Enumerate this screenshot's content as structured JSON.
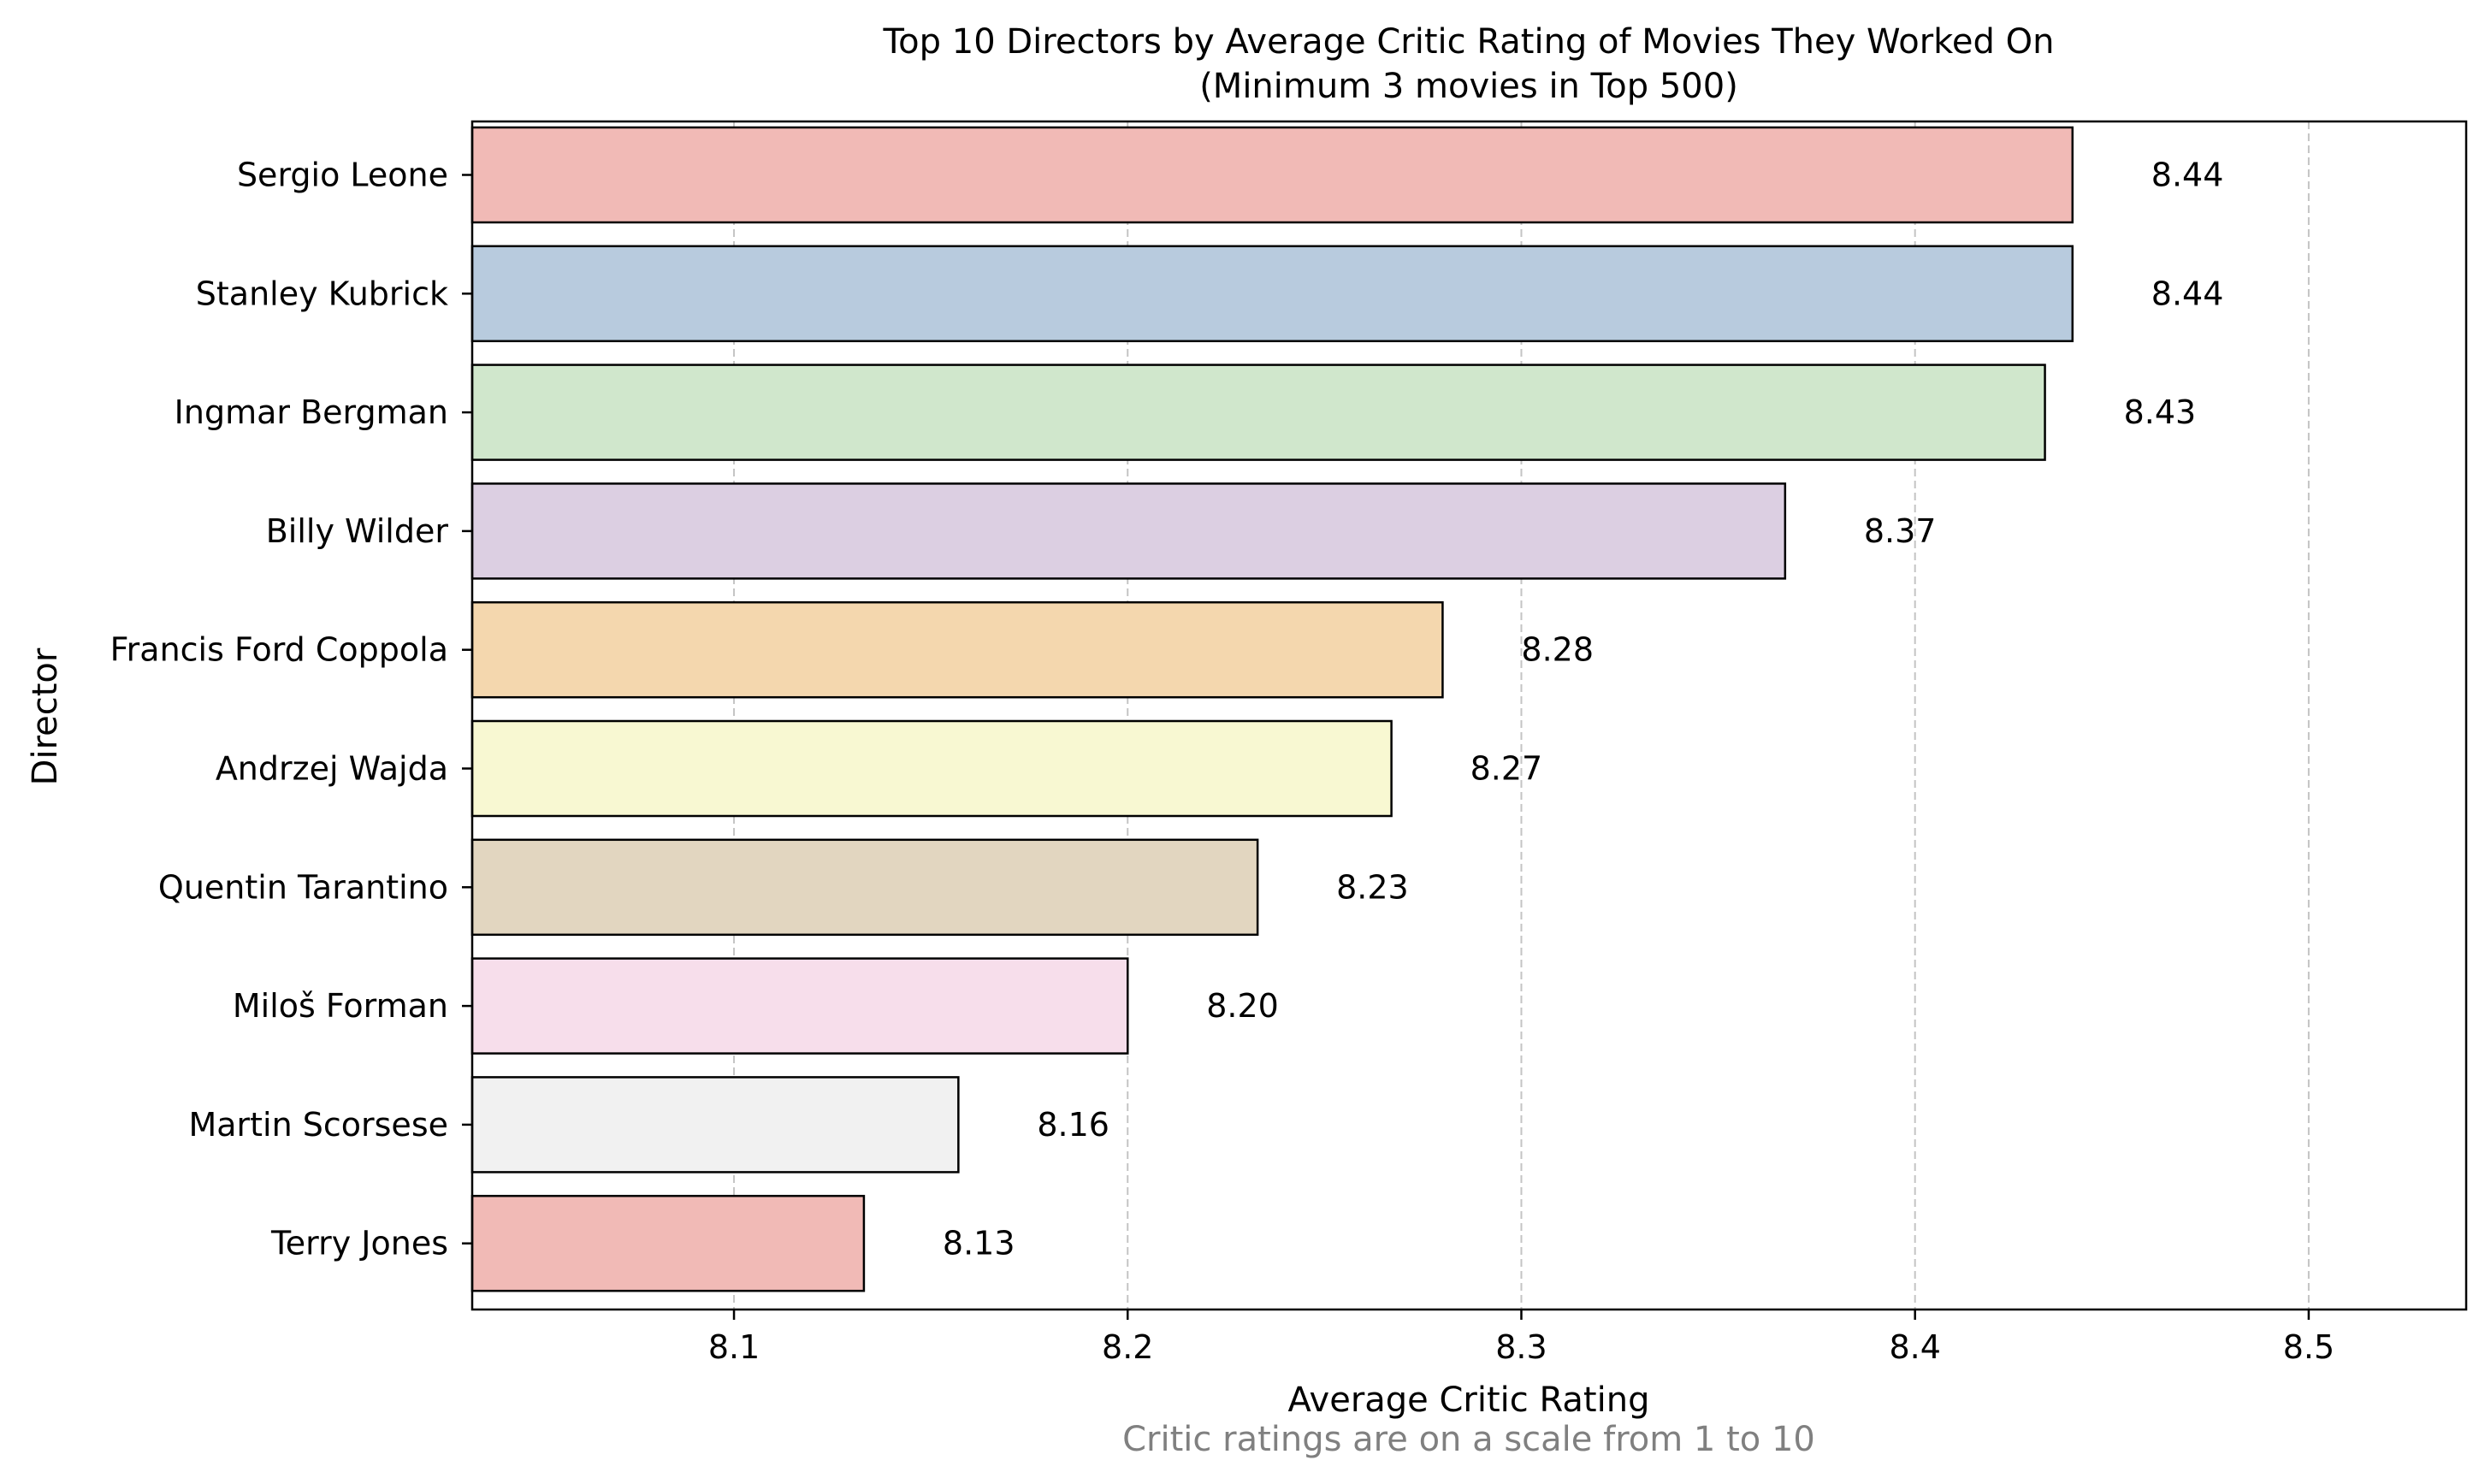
{
  "chart_data": {
    "type": "bar",
    "orientation": "horizontal",
    "title": "Top 10 Directors by Average Critic Rating of Movies They Worked On",
    "subtitle": "(Minimum 3 movies in Top 500)",
    "xlabel": "Average Critic Rating",
    "ylabel": "Director",
    "footnote": "Critic ratings are on a scale from 1 to 10",
    "xlim": [
      8.0335,
      8.54
    ],
    "xticks": [
      8.1,
      8.2,
      8.3,
      8.4,
      8.5
    ],
    "xtick_labels": [
      "8.1",
      "8.2",
      "8.3",
      "8.4",
      "8.5"
    ],
    "grid": "x-axis dashed",
    "legend": "none",
    "categories": [
      "Sergio Leone",
      "Stanley Kubrick",
      "Ingmar Bergman",
      "Billy Wilder",
      "Francis Ford Coppola",
      "Andrzej Wajda",
      "Quentin Tarantino",
      "Miloš Forman",
      "Martin Scorsese",
      "Terry Jones"
    ],
    "values": [
      8.44,
      8.44,
      8.433,
      8.367,
      8.28,
      8.267,
      8.233,
      8.2,
      8.157,
      8.133
    ],
    "value_labels": [
      "8.44",
      "8.44",
      "8.43",
      "8.37",
      "8.28",
      "8.27",
      "8.23",
      "8.20",
      "8.16",
      "8.13"
    ],
    "colors": [
      "#f1bab6",
      "#b8cbde",
      "#d0e7cc",
      "#dccfe2",
      "#f4d7ae",
      "#f8f8d2",
      "#e2d6c0",
      "#f7deeb",
      "#f1f1f1",
      "#f1bab6"
    ],
    "edge_color": "#000000",
    "grid_color": "#c4c4c4",
    "footnote_color": "#808080"
  }
}
